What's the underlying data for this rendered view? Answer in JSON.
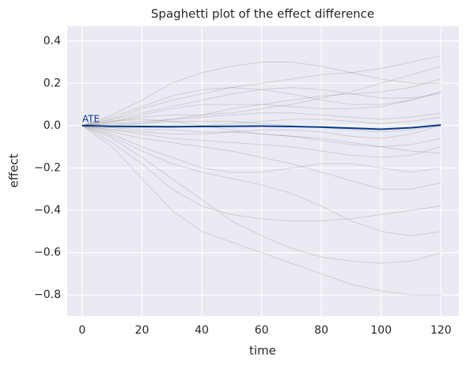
{
  "chart_data": {
    "type": "line",
    "title": "Spaghetti plot of the effect difference",
    "xlabel": "time",
    "ylabel": "effect",
    "annotation": "ATE",
    "x": [
      0,
      10,
      20,
      30,
      40,
      50,
      60,
      70,
      80,
      90,
      100,
      110,
      120
    ],
    "xlim": [
      -5,
      126
    ],
    "ylim": [
      -0.9,
      0.47
    ],
    "xticks": [
      0,
      20,
      40,
      60,
      80,
      100,
      120
    ],
    "yticks": [
      {
        "value": -0.8,
        "label": "−0.8"
      },
      {
        "value": -0.6,
        "label": "−0.6"
      },
      {
        "value": -0.4,
        "label": "−0.4"
      },
      {
        "value": -0.2,
        "label": "−0.2"
      },
      {
        "value": 0,
        "label": "0.0"
      },
      0.2,
      0.4
    ],
    "grid": true,
    "background": "#eaeaf2",
    "series": [
      {
        "color": "#808080",
        "values": [
          0,
          -0.1,
          -0.25,
          -0.4,
          -0.5,
          -0.55,
          -0.6,
          -0.65,
          -0.7,
          -0.75,
          -0.78,
          -0.8,
          -0.8
        ]
      },
      {
        "color": "#808080",
        "values": [
          0,
          -0.05,
          -0.12,
          -0.18,
          -0.22,
          -0.25,
          -0.28,
          -0.32,
          -0.38,
          -0.45,
          -0.5,
          -0.52,
          -0.5
        ]
      },
      {
        "color": "#808080",
        "values": [
          0,
          0.03,
          0.08,
          0.12,
          0.15,
          0.18,
          0.2,
          0.22,
          0.24,
          0.25,
          0.27,
          0.3,
          0.33
        ]
      },
      {
        "color": "#808080",
        "values": [
          0,
          0.02,
          0.05,
          0.08,
          0.1,
          0.1,
          0.1,
          0.09,
          0.08,
          0.08,
          0.09,
          0.12,
          0.16
        ]
      },
      {
        "color": "#808080",
        "values": [
          0,
          -0.02,
          -0.04,
          -0.06,
          -0.07,
          -0.08,
          -0.09,
          -0.1,
          -0.12,
          -0.14,
          -0.15,
          -0.14,
          -0.1
        ]
      },
      {
        "color": "#808080",
        "values": [
          0,
          0.01,
          0.02,
          0.03,
          0.04,
          0.05,
          0.06,
          0.06,
          0.05,
          0.04,
          0.03,
          0.04,
          0.06
        ]
      },
      {
        "color": "#808080",
        "values": [
          0,
          -0.01,
          -0.02,
          -0.02,
          -0.03,
          -0.03,
          -0.04,
          -0.05,
          -0.07,
          -0.09,
          -0.1,
          -0.09,
          -0.06
        ]
      },
      {
        "color": "#808080",
        "values": [
          0,
          0.05,
          0.12,
          0.2,
          0.25,
          0.28,
          0.3,
          0.3,
          0.28,
          0.25,
          0.22,
          0.2,
          0.2
        ]
      },
      {
        "color": "#808080",
        "values": [
          0,
          -0.08,
          -0.18,
          -0.3,
          -0.38,
          -0.42,
          -0.44,
          -0.45,
          -0.45,
          -0.44,
          -0.42,
          -0.4,
          -0.38
        ]
      },
      {
        "color": "#808080",
        "values": [
          0,
          0.02,
          0.04,
          0.05,
          0.05,
          0.06,
          0.08,
          0.1,
          0.13,
          0.16,
          0.2,
          0.24,
          0.28
        ]
      },
      {
        "color": "#808080",
        "values": [
          0,
          -0.03,
          -0.06,
          -0.08,
          -0.1,
          -0.12,
          -0.15,
          -0.18,
          -0.22,
          -0.26,
          -0.3,
          -0.3,
          -0.27
        ]
      },
      {
        "color": "#808080",
        "values": [
          0,
          0.01,
          0.01,
          0.02,
          0.02,
          0.02,
          0.01,
          0,
          -0.01,
          -0.02,
          -0.03,
          -0.02,
          0
        ]
      },
      {
        "color": "#808080",
        "values": [
          0,
          -0.01,
          -0.01,
          -0.01,
          0,
          0.01,
          0.02,
          0.03,
          0.03,
          0.02,
          0.01,
          0.02,
          0.04
        ]
      },
      {
        "color": "#808080",
        "values": [
          0,
          0.03,
          0.06,
          0.09,
          0.12,
          0.15,
          0.17,
          0.18,
          0.17,
          0.15,
          0.13,
          0.13,
          0.15
        ]
      },
      {
        "color": "#808080",
        "values": [
          0,
          -0.04,
          -0.1,
          -0.15,
          -0.2,
          -0.22,
          -0.22,
          -0.2,
          -0.18,
          -0.18,
          -0.2,
          -0.22,
          -0.2
        ]
      },
      {
        "color": "#808080",
        "values": [
          0,
          0,
          0.01,
          0.03,
          0.05,
          0.08,
          0.1,
          0.12,
          0.14,
          0.15,
          0.16,
          0.18,
          0.22
        ]
      },
      {
        "color": "#808080",
        "values": [
          0,
          -0.02,
          -0.03,
          -0.04,
          -0.04,
          -0.03,
          -0.02,
          -0.02,
          -0.03,
          -0.05,
          -0.06,
          -0.04,
          0
        ]
      },
      {
        "color": "#808080",
        "values": [
          0,
          -0.06,
          -0.15,
          -0.25,
          -0.35,
          -0.45,
          -0.52,
          -0.58,
          -0.62,
          -0.64,
          -0.65,
          -0.64,
          -0.6
        ]
      },
      {
        "color": "#808080",
        "values": [
          0,
          0.02,
          0.03,
          0.02,
          0,
          -0.02,
          -0.04,
          -0.05,
          -0.06,
          -0.08,
          -0.1,
          -0.12,
          -0.13
        ]
      },
      {
        "color": "#808080",
        "values": [
          0,
          0.04,
          0.09,
          0.14,
          0.17,
          0.18,
          0.17,
          0.15,
          0.12,
          0.1,
          0.1,
          0.12,
          0.16
        ]
      },
      {
        "color": "#0d3a8c",
        "values": [
          0,
          -0.003,
          -0.004,
          -0.005,
          -0.004,
          -0.003,
          -0.002,
          -0.004,
          -0.007,
          -0.012,
          -0.017,
          -0.01,
          0.003
        ]
      }
    ]
  }
}
